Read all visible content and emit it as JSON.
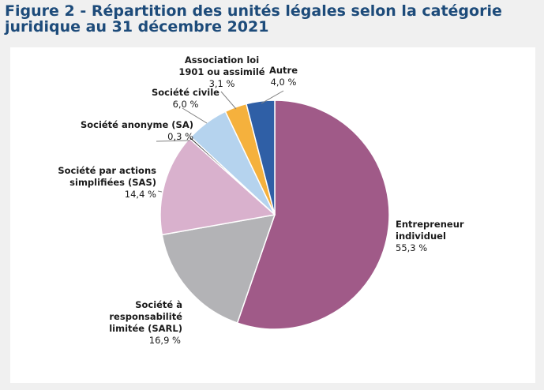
{
  "title": "Figure 2 - Répartition des unités légales selon la catégorie juridique au 31 décembre 2021",
  "chart_data": {
    "type": "pie",
    "title": "Figure 2 - Répartition des unités légales selon la catégorie juridique au 31 décembre 2021",
    "start": "12 o'clock, clockwise",
    "unit": "%",
    "slices": [
      {
        "name_lines": [
          "Entrepreneur",
          "individuel"
        ],
        "value": 55.3,
        "value_label": "55,3 %",
        "color": "#a05a88"
      },
      {
        "name_lines": [
          "Société à",
          "responsabilité",
          "limitée (SARL)"
        ],
        "value": 16.9,
        "value_label": "16,9 %",
        "color": "#b3b3b6"
      },
      {
        "name_lines": [
          "Société par actions",
          "simplifiées (SAS)"
        ],
        "value": 14.4,
        "value_label": "14,4 %",
        "color": "#d9b1cd"
      },
      {
        "name_lines": [
          "Société anonyme (SA)"
        ],
        "value": 0.3,
        "value_label": "0,3 %",
        "color": "#3d3d3d"
      },
      {
        "name_lines": [
          "Société civile"
        ],
        "value": 6.0,
        "value_label": "6,0 %",
        "color": "#b5d3ee"
      },
      {
        "name_lines": [
          "Association loi",
          "1901 ou assimilé"
        ],
        "value": 3.1,
        "value_label": "3,1 %",
        "color": "#f5b13d"
      },
      {
        "name_lines": [
          "Autre"
        ],
        "value": 4.0,
        "value_label": "4,0 %",
        "color": "#2f5fa6"
      }
    ]
  }
}
